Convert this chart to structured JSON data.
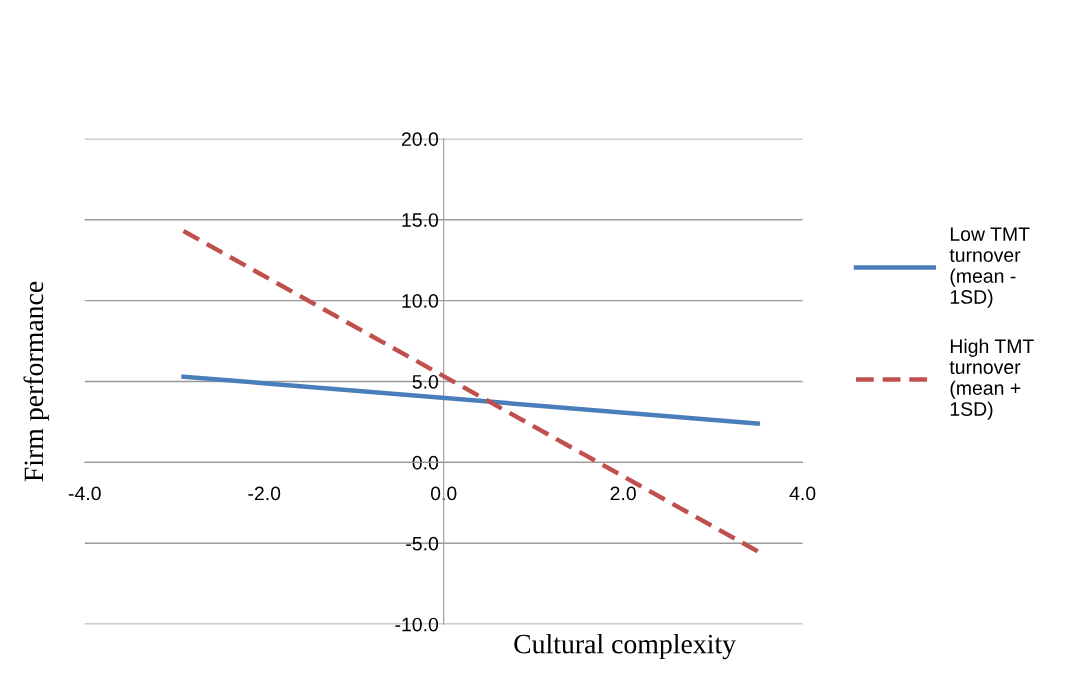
{
  "chart_data": {
    "type": "line",
    "xlabel": "Cultural complexity",
    "ylabel": "Firm performance",
    "x": [
      -2.9,
      3.5
    ],
    "series": [
      {
        "name": "Low TMT turnover (mean - 1SD)",
        "color": "#4a7ebb",
        "line_style": "solid",
        "values": [
          5.3,
          2.4
        ]
      },
      {
        "name": "High TMT turnover (mean + 1SD)",
        "color": "#c0504d",
        "line_style": "dashed",
        "values": [
          14.3,
          -5.5
        ]
      }
    ],
    "xlim": [
      -4.0,
      4.0
    ],
    "xticks": [
      {
        "value": -4,
        "label": "-4.0"
      },
      {
        "value": -2,
        "label": "-2.0"
      },
      {
        "value": 0,
        "label": "0.0"
      },
      {
        "value": 2,
        "label": "2.0"
      },
      {
        "value": 4,
        "label": "4.0"
      }
    ],
    "ylim": [
      -10.0,
      20.0
    ],
    "yticks": [
      {
        "value": -10,
        "label": "-10.0"
      },
      {
        "value": -5,
        "label": "-5.0"
      },
      {
        "value": 0,
        "label": "0.0"
      },
      {
        "value": 5,
        "label": "5.0"
      },
      {
        "value": 10,
        "label": "10.0"
      },
      {
        "value": 15,
        "label": "15.0"
      },
      {
        "value": 20,
        "label": "20.0"
      }
    ],
    "grid": "y",
    "legend": "right",
    "marker": "none"
  }
}
